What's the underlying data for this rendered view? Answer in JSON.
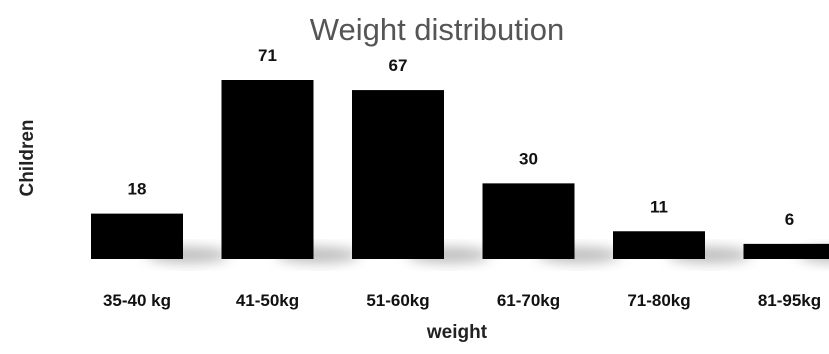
{
  "chart_data": {
    "type": "bar",
    "title": "Weight distribution",
    "xlabel": "weight",
    "ylabel": "Children",
    "categories": [
      "35-40 kg",
      "41-50kg",
      "51-60kg",
      "61-70kg",
      "71-80kg",
      "81-95kg"
    ],
    "values": [
      18,
      71,
      67,
      30,
      11,
      6
    ],
    "data_labels": [
      "18",
      "71",
      "67",
      "30",
      "11",
      "6"
    ],
    "ylim": [
      0,
      71
    ],
    "grid": false,
    "legend": "none",
    "colors": {
      "bar": "#000000",
      "shadow": "#bdbdbd",
      "title": "#555555",
      "text": "#111111"
    }
  }
}
